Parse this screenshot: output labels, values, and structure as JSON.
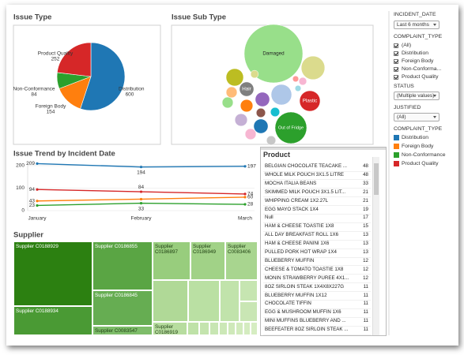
{
  "chart_data": [
    {
      "type": "pie",
      "title": "Issue Type",
      "categories": [
        "Distribution",
        "Foreign Body",
        "Non-Conformance",
        "Product Quality"
      ],
      "values": [
        600,
        154,
        84,
        252
      ],
      "colors": [
        "#1f77b4",
        "#ff7f0e",
        "#2ca02c",
        "#d62728"
      ]
    },
    {
      "type": "bubble",
      "title": "Issue Sub Type",
      "categories": [
        "Damaged",
        "Out of Fridge",
        null,
        "Plastic",
        null,
        null,
        "Hair",
        null,
        null,
        null,
        null,
        null,
        null,
        null,
        null,
        null,
        null,
        null,
        null,
        null,
        null
      ],
      "values": [
        283,
        83,
        46,
        35,
        35,
        25,
        17,
        17,
        17,
        13,
        13,
        10,
        10,
        10,
        7,
        7,
        7,
        5,
        5,
        3,
        3
      ],
      "colors": [
        "#98df8a",
        "#2ca02c",
        "#dbdb8d",
        "#d62728",
        "#aec7e8",
        "#bcbd22",
        "#7f7f7f",
        "#9467bd",
        "#1f77b4",
        "#ff7f0e",
        "#c5b0d5",
        "#f7b6d2",
        "#98df8a",
        "#ffbb78",
        "#8c564b",
        "#17becf",
        "#c7c7c7",
        "#dbdb8d",
        "#f7b6d2",
        "#ff9896",
        "#9edae5"
      ]
    },
    {
      "type": "line",
      "title": "Issue Trend by Incident Date",
      "categories": [
        "January",
        "February",
        "March"
      ],
      "ylim": [
        0,
        215
      ],
      "yticks": [
        0,
        100,
        200
      ],
      "grid": true,
      "series": [
        {
          "name": "Distribution",
          "color": "#1f77b4",
          "values": [
            209,
            194,
            197
          ]
        },
        {
          "name": "Foreign Body",
          "color": "#ff7f0e",
          "values": [
            43,
            51,
            60
          ],
          "value_labels": [
            "43",
            null,
            "60"
          ]
        },
        {
          "name": "Non-Conformance",
          "color": "#2ca02c",
          "values": [
            23,
            33,
            28
          ]
        },
        {
          "name": "Product Quality",
          "color": "#d62728",
          "values": [
            94,
            84,
            74
          ]
        }
      ]
    },
    {
      "type": "treemap",
      "title": "Supplier",
      "categories": [
        "Supplier C0188929",
        "Supplier C0188934",
        "Supplier C0186855",
        "Supplier C0186845",
        "Supplier C0083547",
        "Supplier C0186897",
        "Supplier C0186949",
        "Supplier C0083406",
        "Supplier C0186919",
        null,
        null,
        null,
        null,
        null,
        null,
        null,
        null,
        null,
        null,
        null,
        null,
        null
      ],
      "values": [
        82,
        37,
        47,
        34,
        9,
        24,
        22,
        20,
        7,
        24,
        21,
        13,
        6,
        6,
        3,
        2,
        2,
        2,
        2,
        2,
        2,
        2
      ],
      "colors": [
        "#2c8011",
        "#4a9a34",
        "#5aa544",
        "#66ad52",
        "#7ebd6a",
        "#98cd7d",
        "#a1d287",
        "#a8d58f",
        "#b7dd9f",
        "#b0d997",
        "#bae0a3",
        "#c1e3ab",
        "#c6e5b1",
        "#c9e6b4",
        "#bfe2a8",
        "#c4e4ae",
        "#c8e6b3",
        "#cce8b7",
        "#cfe9ba",
        "#d2ebbd",
        "#d4ecc0",
        "#d6edc2"
      ]
    }
  ],
  "filters": {
    "incident_date": {
      "label": "INCIDENT_DATE",
      "value": "Last 6 months"
    },
    "complaint_type": {
      "label": "COMPLAINT_TYPE",
      "options": [
        "(All)",
        "Distribution",
        "Foreign Body",
        "Non-Conforma...",
        "Product Quality"
      ]
    },
    "status": {
      "label": "STATUS",
      "value": "(Multiple values)"
    },
    "justified": {
      "label": "JUSTIFIED",
      "value": "(All)"
    },
    "legend_title": "COMPLAINT_TYPE"
  },
  "product_table": {
    "title": "Product",
    "rows": [
      [
        "BELGIAN CHOCOLATE TEACAKE ...",
        "48"
      ],
      [
        "WHOLE MILK POUCH 3X1.5 LITRE",
        "48"
      ],
      [
        "MOCHA ITALIA BEANS",
        "33"
      ],
      [
        "SKIMMED MILK POUCH 3X1.5 LIT...",
        "21"
      ],
      [
        "WHIPPING CREAM 1X2.27L",
        "21"
      ],
      [
        "EGG MAYO STACK 1X4",
        "19"
      ],
      [
        "Null",
        "17"
      ],
      [
        "HAM & CHEESE TOASTIE 1X8",
        "15"
      ],
      [
        "ALL DAY BREAKFAST ROLL 1X6",
        "13"
      ],
      [
        "HAM & CHEESE PANINI 1X6",
        "13"
      ],
      [
        "PULLED PORK HOT WRAP 1X4",
        "13"
      ],
      [
        "BLUEBERRY MUFFIN",
        "12"
      ],
      [
        "CHEESE & TOMATO TOASTIE 1X8",
        "12"
      ],
      [
        "MONIN STRAWBERRY PUREE 4X1...",
        "12"
      ],
      [
        "8OZ SIRLOIN STEAK 1X4X8X227G",
        "11"
      ],
      [
        "BLUEBERRY MUFFIN 1X12",
        "11"
      ],
      [
        "CHOCOLATE TIFFIN",
        "11"
      ],
      [
        "EGG & MUSHROOM MUFFIN 1X6",
        "11"
      ],
      [
        "MINI MUFFINS BLUEBERRY AND ...",
        "11"
      ],
      [
        "BEEFEATER 8OZ SIRLOIN STEAK ...",
        "11"
      ]
    ]
  }
}
